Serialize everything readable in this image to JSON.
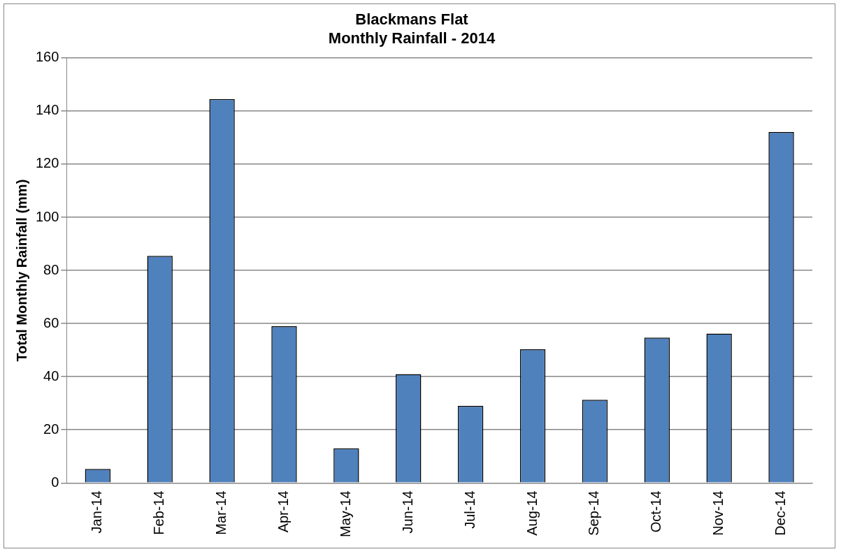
{
  "chart_data": {
    "type": "bar",
    "title": "Blackmans Flat\nMonthly Rainfall - 2014",
    "ylabel": "Total Monthly Rainfall (mm)",
    "categories": [
      "Jan-14",
      "Feb-14",
      "Mar-14",
      "Apr-14",
      "May-14",
      "Jun-14",
      "Jul-14",
      "Aug-14",
      "Sep-14",
      "Oct-14",
      "Nov-14",
      "Dec-14"
    ],
    "values": [
      5.3,
      85.5,
      144.5,
      59,
      13,
      41,
      29,
      50.3,
      31.3,
      54.7,
      56.2,
      132.1
    ],
    "color": "#4f81bd",
    "ylim": [
      0,
      160
    ],
    "yticks": [
      0,
      20,
      40,
      60,
      80,
      100,
      120,
      140,
      160
    ],
    "grid": "y",
    "legend": false
  }
}
